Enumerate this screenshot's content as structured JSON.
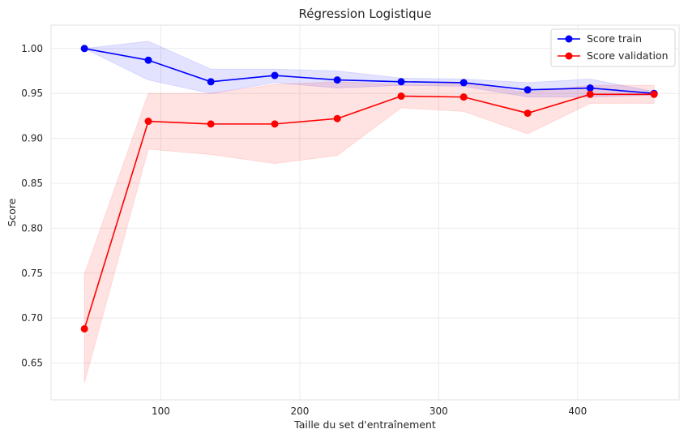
{
  "chart_data": {
    "type": "line",
    "title": "Régression Logistique",
    "xlabel": "Taille du set d'entraînement",
    "ylabel": "Score",
    "xlim": [
      21,
      473
    ],
    "ylim": [
      0.609,
      1.026
    ],
    "x_ticks": [
      100,
      200,
      300,
      400
    ],
    "y_ticks": [
      0.65,
      0.7,
      0.75,
      0.8,
      0.85,
      0.9,
      0.95,
      1.0
    ],
    "y_tick_labels": [
      "0.65",
      "0.70",
      "0.75",
      "0.80",
      "0.85",
      "0.90",
      "0.95",
      "1.00"
    ],
    "grid": true,
    "legend_position": "top-right",
    "x": [
      45,
      91,
      136,
      182,
      227,
      273,
      318,
      364,
      409,
      455
    ],
    "series": [
      {
        "name": "Score train",
        "color": "#0000ff",
        "band_color": "#0000ff",
        "values": [
          1.0,
          0.987,
          0.963,
          0.97,
          0.965,
          0.963,
          0.962,
          0.954,
          0.956,
          0.95
        ],
        "upper": [
          1.0,
          1.008,
          0.977,
          0.977,
          0.975,
          0.967,
          0.966,
          0.962,
          0.966,
          0.952
        ],
        "lower": [
          1.0,
          0.965,
          0.95,
          0.962,
          0.956,
          0.959,
          0.958,
          0.946,
          0.946,
          0.948
        ]
      },
      {
        "name": "Score validation",
        "color": "#ff0000",
        "band_color": "#ff0000",
        "values": [
          0.688,
          0.919,
          0.916,
          0.916,
          0.922,
          0.947,
          0.946,
          0.928,
          0.949,
          0.949
        ],
        "upper": [
          0.749,
          0.95,
          0.95,
          0.96,
          0.963,
          0.96,
          0.961,
          0.951,
          0.959,
          0.959
        ],
        "lower": [
          0.628,
          0.888,
          0.882,
          0.872,
          0.881,
          0.934,
          0.93,
          0.905,
          0.939,
          0.939
        ]
      }
    ]
  }
}
